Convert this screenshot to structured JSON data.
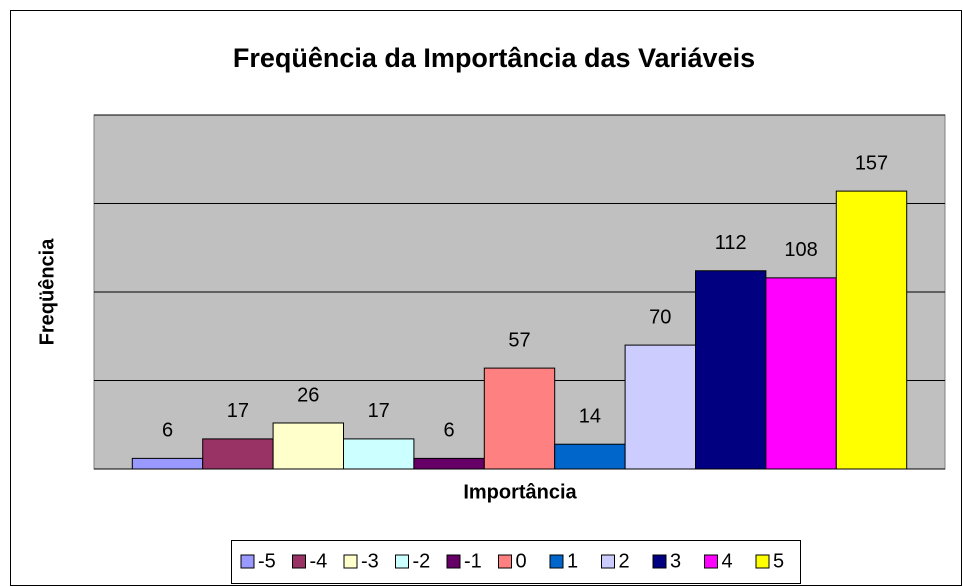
{
  "chart_data": {
    "type": "bar",
    "title": "Freqüência da Importância das Variáveis",
    "y_label": "Freqüência",
    "x_label": "Importância",
    "series": [
      {
        "name": "-5",
        "color": "#9999ff",
        "values": [
          6
        ]
      },
      {
        "name": "-4",
        "color": "#993366",
        "values": [
          17
        ]
      },
      {
        "name": "-3",
        "color": "#ffffcc",
        "values": [
          26
        ]
      },
      {
        "name": "-2",
        "color": "#ccffff",
        "values": [
          17
        ]
      },
      {
        "name": "-1",
        "color": "#660066",
        "values": [
          6
        ]
      },
      {
        "name": "0",
        "color": "#ff8080",
        "values": [
          57
        ]
      },
      {
        "name": "1",
        "color": "#0066cc",
        "values": [
          14
        ]
      },
      {
        "name": "2",
        "color": "#ccccff",
        "values": [
          70
        ]
      },
      {
        "name": "3",
        "color": "#000080",
        "values": [
          112
        ]
      },
      {
        "name": "4",
        "color": "#ff00ff",
        "values": [
          108
        ]
      },
      {
        "name": "5",
        "color": "#ffff00",
        "values": [
          157
        ]
      }
    ],
    "ylim": [
      0,
      200
    ],
    "yticks": [
      0,
      50,
      100,
      150,
      200
    ],
    "grid": true,
    "legend": "bottom"
  }
}
